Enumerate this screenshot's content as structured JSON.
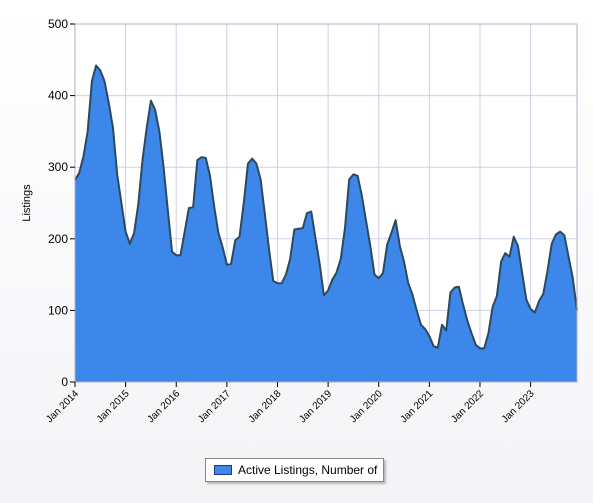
{
  "chart_data": {
    "type": "area",
    "title": "",
    "xlabel": "",
    "ylabel": "Listings",
    "ylim": [
      0,
      500
    ],
    "yticks": [
      0,
      100,
      200,
      300,
      400,
      500
    ],
    "xticks": [
      "Jan 2014",
      "Jan 2015",
      "Jan 2016",
      "Jan 2017",
      "Jan 2018",
      "Jan 2019",
      "Jan 2020",
      "Jan 2021",
      "Jan 2022",
      "Jan 2023"
    ],
    "grid": true,
    "legend_position": "bottom-center",
    "series": [
      {
        "name": "Active Listings, Number of",
        "color": "#3d86ea",
        "line_color": "#2b4a5e",
        "values": [
          282,
          292,
          315,
          350,
          420,
          442,
          435,
          420,
          390,
          355,
          290,
          250,
          210,
          193,
          208,
          248,
          310,
          355,
          393,
          380,
          350,
          300,
          240,
          182,
          177,
          177,
          210,
          243,
          244,
          310,
          314,
          313,
          288,
          245,
          208,
          188,
          164,
          165,
          198,
          203,
          250,
          305,
          312,
          305,
          283,
          235,
          185,
          141,
          138,
          138,
          150,
          172,
          213,
          214,
          215,
          236,
          238,
          201,
          165,
          121,
          128,
          143,
          153,
          172,
          215,
          283,
          290,
          288,
          260,
          225,
          190,
          150,
          145,
          152,
          192,
          208,
          226,
          190,
          168,
          138,
          122,
          100,
          80,
          74,
          64,
          50,
          48,
          80,
          72,
          125,
          132,
          133,
          108,
          86,
          68,
          52,
          47,
          47,
          68,
          105,
          120,
          168,
          180,
          175,
          203,
          190,
          152,
          115,
          102,
          97,
          113,
          123,
          155,
          193,
          206,
          210,
          205,
          175,
          145,
          100
        ]
      }
    ]
  }
}
